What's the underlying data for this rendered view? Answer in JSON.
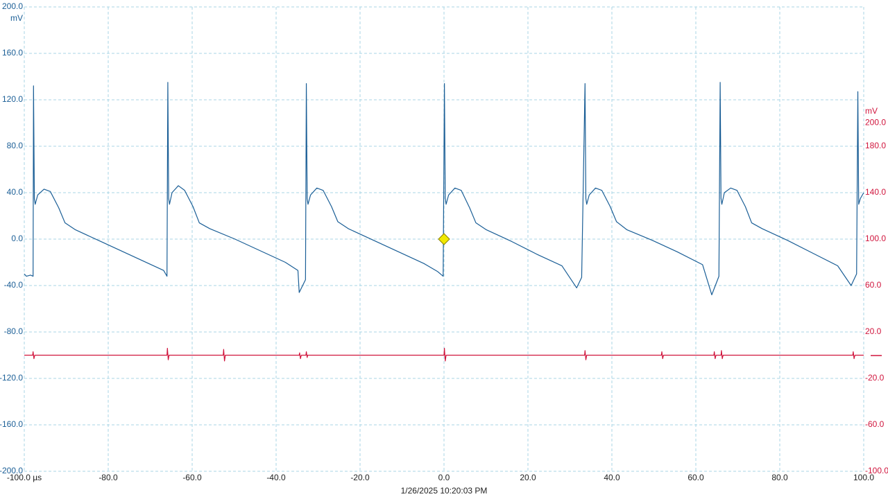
{
  "chart_data": {
    "type": "line",
    "y_unit": "mV",
    "y2_unit": "mV",
    "timestamp": "1/26/2025 10:20:03 PM",
    "grid": true,
    "xlim": [
      -100,
      100
    ],
    "xticks": [
      {
        "value": -100,
        "label": "-100.0 µs"
      },
      {
        "value": -80,
        "label": "-80.0"
      },
      {
        "value": -60,
        "label": "-60.0"
      },
      {
        "value": -40,
        "label": "-40.0"
      },
      {
        "value": -20,
        "label": "-20.0"
      },
      {
        "value": 0,
        "label": "0.0"
      },
      {
        "value": 20,
        "label": "20.0"
      },
      {
        "value": 40,
        "label": "40.0"
      },
      {
        "value": 60,
        "label": "60.0"
      },
      {
        "value": 80,
        "label": "80.0"
      },
      {
        "value": 100,
        "label": "100.0"
      }
    ],
    "ylim": [
      -200,
      200
    ],
    "yticks": [
      {
        "value": 200,
        "label": "200.0"
      },
      {
        "value": 160,
        "label": "160.0"
      },
      {
        "value": 120,
        "label": "120.0"
      },
      {
        "value": 80,
        "label": "80.0"
      },
      {
        "value": 40,
        "label": "40.0"
      },
      {
        "value": 0,
        "label": "0.0"
      },
      {
        "value": -40,
        "label": "-40.0"
      },
      {
        "value": -80,
        "label": "-80.0"
      },
      {
        "value": -120,
        "label": "-120.0"
      },
      {
        "value": -160,
        "label": "-160.0"
      },
      {
        "value": -200,
        "label": "-200.0"
      }
    ],
    "y2lim": [
      -100,
      300
    ],
    "y2ticks": [
      {
        "value": 200,
        "label": "200.0"
      },
      {
        "value": 180,
        "label": "180.0"
      },
      {
        "value": 140,
        "label": "140.0"
      },
      {
        "value": 100,
        "label": "100.0"
      },
      {
        "value": 60,
        "label": "60.0"
      },
      {
        "value": 20,
        "label": "20.0"
      },
      {
        "value": -20,
        "label": "-20.0"
      },
      {
        "value": -60,
        "label": "-60.0"
      },
      {
        "value": -100,
        "label": "-100.0"
      }
    ],
    "y_color": "#1a5e96",
    "y2_color": "#d0143c",
    "trigger": {
      "x": 0,
      "y": 0,
      "color": "#f0e800"
    },
    "series": [
      {
        "color": "#1a5e96",
        "x": [
          -100,
          -99.5,
          -98.5,
          -97.9,
          -97.8,
          -97.6,
          -97.4,
          -96.8,
          -95.3,
          -93.8,
          -91.8,
          -90.3,
          -87.8,
          -81.8,
          -75.8,
          -69.8,
          -66.8,
          -66.0,
          -65.8,
          -65.6,
          -65.4,
          -64.8,
          -63.3,
          -61.8,
          -59.8,
          -58.3,
          -55.8,
          -49.8,
          -43.8,
          -37.8,
          -34.8,
          -34.5,
          -33.0,
          -32.8,
          -32.6,
          -32.4,
          -31.8,
          -30.3,
          -28.8,
          -26.8,
          -25.3,
          -22.8,
          -16.8,
          -10.8,
          -4.8,
          -1.5,
          -0.2,
          0.1,
          0.3,
          0.5,
          1.1,
          2.6,
          4.1,
          6.1,
          7.6,
          10.1,
          16.1,
          22.1,
          28.1,
          31.6,
          32.8,
          33.6,
          33.8,
          34.0,
          34.6,
          36.1,
          37.6,
          39.6,
          41.1,
          43.6,
          49.6,
          55.6,
          61.6,
          63.8,
          65.5,
          65.8,
          66.0,
          66.2,
          66.8,
          68.3,
          69.8,
          71.8,
          73.3,
          75.8,
          81.8,
          87.8,
          93.8,
          97.0,
          98.3,
          98.6,
          98.8,
          99.2,
          100
        ],
        "values": [
          -30,
          -32,
          -31,
          -32,
          132,
          35,
          30,
          38,
          43,
          41,
          27,
          14,
          8,
          -2,
          -12,
          -22,
          -27,
          -32,
          135,
          35,
          30,
          40,
          46,
          42,
          28,
          14,
          9,
          0,
          -10,
          -20,
          -27,
          -46,
          -35,
          134,
          35,
          30,
          38,
          44,
          42,
          28,
          15,
          9,
          -1,
          -11,
          -21,
          -28,
          -32,
          134,
          35,
          30,
          38,
          44,
          42,
          27,
          14,
          8,
          -2,
          -13,
          -23,
          -42,
          -33,
          134,
          35,
          30,
          38,
          44,
          42,
          28,
          15,
          8,
          -1,
          -11,
          -22,
          -48,
          -32,
          135,
          35,
          30,
          40,
          44,
          42,
          28,
          14,
          9,
          -1,
          -12,
          -23,
          -40,
          -30,
          127,
          30,
          35,
          40
        ]
      },
      {
        "color": "#d0143c",
        "axis": "y2",
        "x": [
          -100,
          -98,
          -97.9,
          -97.7,
          -97.5,
          -66,
          -65.9,
          -65.7,
          -65.5,
          -52.6,
          -52.5,
          -52.3,
          -52.1,
          -34.5,
          -34.4,
          -34.2,
          -34,
          -32.9,
          -32.8,
          -32.6,
          -32.5,
          0,
          0.1,
          0.3,
          0.5,
          33.5,
          33.6,
          33.8,
          34,
          51.8,
          51.9,
          52.1,
          52.3,
          64.3,
          64.4,
          64.6,
          64.8,
          66,
          66.1,
          66.3,
          66.5,
          97.4,
          97.5,
          97.7,
          97.9,
          100
        ],
        "values": [
          0,
          0,
          3,
          -3,
          0,
          0,
          6,
          -4,
          0,
          0,
          5,
          -5,
          0,
          0,
          2,
          -3,
          0,
          0,
          3,
          -2,
          0,
          0,
          6,
          -5,
          0,
          0,
          4,
          -4,
          0,
          0,
          3,
          -3,
          0,
          0,
          3,
          -3,
          0,
          0,
          4,
          -3,
          0,
          0,
          3,
          -3,
          0,
          0
        ]
      }
    ]
  }
}
